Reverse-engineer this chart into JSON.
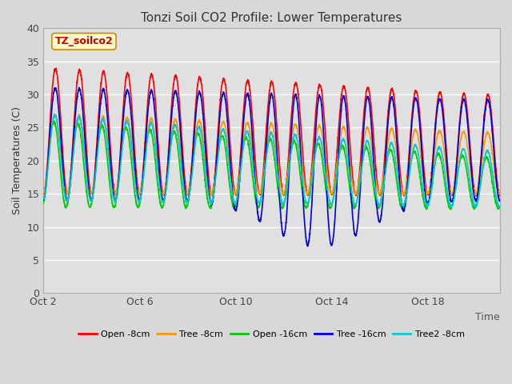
{
  "title": "Tonzi Soil CO2 Profile: Lower Temperatures",
  "xlabel": "Time",
  "ylabel": "Soil Temperatures (C)",
  "watermark": "TZ_soilco2",
  "ylim": [
    0,
    40
  ],
  "yticks": [
    0,
    5,
    10,
    15,
    20,
    25,
    30,
    35,
    40
  ],
  "xtick_labels": [
    "Oct 2",
    "Oct 6",
    "Oct 10",
    "Oct 14",
    "Oct 18"
  ],
  "xtick_positions": [
    1,
    5,
    9,
    13,
    17
  ],
  "fig_bg": "#d8d8d8",
  "plot_bg": "#e0e0e0",
  "grid_color": "#ffffff",
  "series": [
    {
      "label": "Open -8cm",
      "color": "#ff0000",
      "lw": 1.2
    },
    {
      "label": "Tree -8cm",
      "color": "#ff9900",
      "lw": 1.2
    },
    {
      "label": "Open -16cm",
      "color": "#00cc00",
      "lw": 1.2
    },
    {
      "label": "Tree -16cm",
      "color": "#0000dd",
      "lw": 1.2
    },
    {
      "label": "Tree2 -8cm",
      "color": "#00cccc",
      "lw": 1.2
    }
  ]
}
